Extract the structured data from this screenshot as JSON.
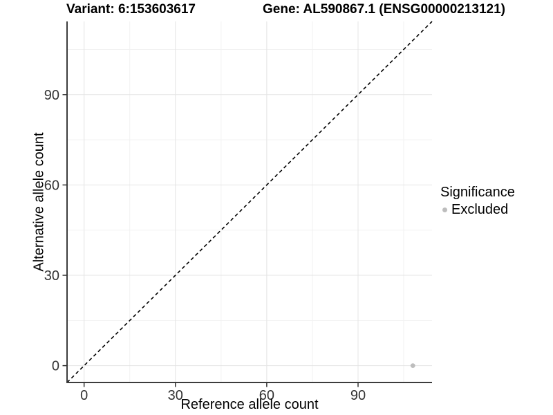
{
  "chart_data": {
    "type": "scatter",
    "titles": {
      "left": "Variant: 6:153603617",
      "right": "Gene: AL590867.1 (ENSG00000213121)"
    },
    "xlabel": "Reference allele count",
    "ylabel": "Alternative allele count",
    "xlim": [
      -5.6,
      114.3
    ],
    "ylim": [
      -5.6,
      114.3
    ],
    "x_ticks": [
      0,
      30,
      60,
      90
    ],
    "y_ticks": [
      0,
      30,
      60,
      90
    ],
    "minor_gridlines": [
      15,
      45,
      75,
      105
    ],
    "grid": "major+minor",
    "identity_line": {
      "style": "dashed",
      "color": "#000000"
    },
    "series": [
      {
        "name": "Excluded",
        "color": "#bdbdbd",
        "points": [
          {
            "x": 108,
            "y": 0
          }
        ]
      }
    ],
    "legend": {
      "title": "Significance",
      "position": "right",
      "entries": [
        {
          "label": "Excluded",
          "color": "#bdbdbd"
        }
      ]
    },
    "colors": {
      "background": "#ffffff",
      "grid_major": "#e4e4e4",
      "grid_minor": "#f1f1f1",
      "axis_line": "#3c3c3c",
      "tick_mark": "#333333",
      "tick_label": "#333333"
    }
  }
}
